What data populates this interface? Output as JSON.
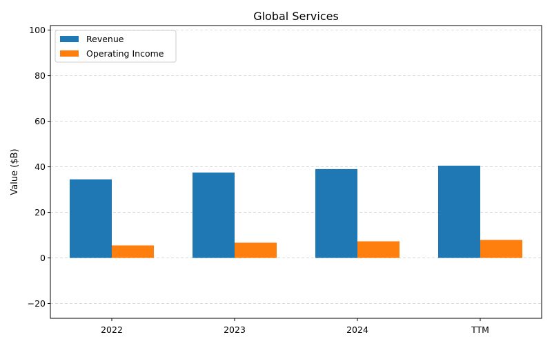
{
  "chart_data": {
    "type": "bar",
    "title": "Global Services",
    "xlabel": "",
    "ylabel": "Value ($B)",
    "categories": [
      "2022",
      "2023",
      "2024",
      "TTM"
    ],
    "series": [
      {
        "name": "Revenue",
        "values": [
          34.5,
          37.5,
          39.0,
          40.5
        ],
        "color": "#1f77b4"
      },
      {
        "name": "Operating Income",
        "values": [
          5.5,
          6.7,
          7.3,
          7.9
        ],
        "color": "#ff7f0e"
      }
    ],
    "ylim": [
      -26.5,
      102
    ],
    "yticks": [
      -20,
      0,
      20,
      40,
      60,
      80,
      100
    ],
    "ytick_labels": [
      "−20",
      "0",
      "20",
      "40",
      "60",
      "80",
      "100"
    ],
    "grid": true,
    "legend_position": "top-left"
  }
}
